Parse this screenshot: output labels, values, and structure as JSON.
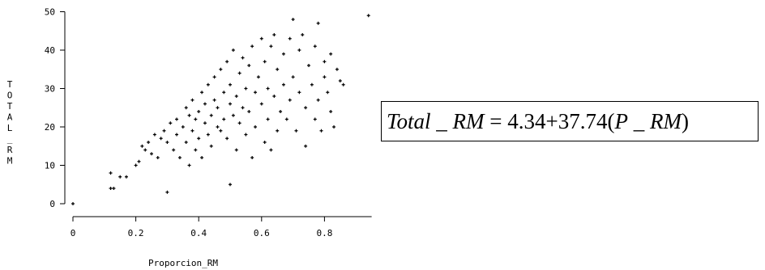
{
  "chart_data": {
    "type": "scatter",
    "xlabel": "Proporcion_RM",
    "ylabel": "TOTAL_RM",
    "xlim": [
      0,
      0.95
    ],
    "ylim": [
      0,
      50
    ],
    "xticks": [
      "0",
      "0.2",
      "0.4",
      "0.6",
      "0.8"
    ],
    "xtick_values": [
      0,
      0.2,
      0.4,
      0.6,
      0.8
    ],
    "yticks": [
      "0",
      "10",
      "20",
      "30",
      "40",
      "50"
    ],
    "ytick_values": [
      0,
      10,
      20,
      30,
      40,
      50
    ],
    "grid": false,
    "marker": "+",
    "color": "#000000",
    "points": [
      [
        0.0,
        0
      ],
      [
        0.12,
        8
      ],
      [
        0.12,
        4
      ],
      [
        0.13,
        4
      ],
      [
        0.15,
        7
      ],
      [
        0.17,
        7
      ],
      [
        0.2,
        10
      ],
      [
        0.21,
        11
      ],
      [
        0.22,
        15
      ],
      [
        0.23,
        14
      ],
      [
        0.24,
        16
      ],
      [
        0.25,
        13
      ],
      [
        0.26,
        18
      ],
      [
        0.27,
        12
      ],
      [
        0.28,
        17
      ],
      [
        0.29,
        19
      ],
      [
        0.3,
        3
      ],
      [
        0.3,
        16
      ],
      [
        0.31,
        21
      ],
      [
        0.32,
        14
      ],
      [
        0.33,
        18
      ],
      [
        0.33,
        22
      ],
      [
        0.34,
        12
      ],
      [
        0.35,
        20
      ],
      [
        0.36,
        25
      ],
      [
        0.36,
        16
      ],
      [
        0.37,
        23
      ],
      [
        0.37,
        10
      ],
      [
        0.38,
        19
      ],
      [
        0.38,
        27
      ],
      [
        0.39,
        14
      ],
      [
        0.39,
        22
      ],
      [
        0.4,
        24
      ],
      [
        0.4,
        17
      ],
      [
        0.41,
        29
      ],
      [
        0.41,
        12
      ],
      [
        0.42,
        21
      ],
      [
        0.42,
        26
      ],
      [
        0.43,
        31
      ],
      [
        0.43,
        18
      ],
      [
        0.44,
        23
      ],
      [
        0.44,
        15
      ],
      [
        0.45,
        33
      ],
      [
        0.45,
        27
      ],
      [
        0.46,
        20
      ],
      [
        0.46,
        25
      ],
      [
        0.47,
        35
      ],
      [
        0.47,
        19
      ],
      [
        0.48,
        29
      ],
      [
        0.48,
        22
      ],
      [
        0.49,
        37
      ],
      [
        0.49,
        17
      ],
      [
        0.5,
        5
      ],
      [
        0.5,
        26
      ],
      [
        0.5,
        31
      ],
      [
        0.51,
        40
      ],
      [
        0.51,
        23
      ],
      [
        0.52,
        28
      ],
      [
        0.52,
        14
      ],
      [
        0.53,
        34
      ],
      [
        0.53,
        21
      ],
      [
        0.54,
        38
      ],
      [
        0.54,
        25
      ],
      [
        0.55,
        30
      ],
      [
        0.55,
        18
      ],
      [
        0.56,
        36
      ],
      [
        0.56,
        24
      ],
      [
        0.57,
        12
      ],
      [
        0.57,
        41
      ],
      [
        0.58,
        29
      ],
      [
        0.58,
        20
      ],
      [
        0.59,
        33
      ],
      [
        0.6,
        43
      ],
      [
        0.6,
        26
      ],
      [
        0.61,
        16
      ],
      [
        0.61,
        37
      ],
      [
        0.62,
        22
      ],
      [
        0.62,
        30
      ],
      [
        0.63,
        41
      ],
      [
        0.63,
        14
      ],
      [
        0.64,
        44
      ],
      [
        0.64,
        28
      ],
      [
        0.65,
        19
      ],
      [
        0.65,
        35
      ],
      [
        0.66,
        24
      ],
      [
        0.67,
        39
      ],
      [
        0.67,
        31
      ],
      [
        0.68,
        22
      ],
      [
        0.69,
        43
      ],
      [
        0.69,
        27
      ],
      [
        0.7,
        48
      ],
      [
        0.7,
        33
      ],
      [
        0.71,
        19
      ],
      [
        0.72,
        40
      ],
      [
        0.72,
        29
      ],
      [
        0.73,
        44
      ],
      [
        0.74,
        25
      ],
      [
        0.74,
        15
      ],
      [
        0.75,
        36
      ],
      [
        0.76,
        31
      ],
      [
        0.77,
        41
      ],
      [
        0.77,
        22
      ],
      [
        0.78,
        47
      ],
      [
        0.78,
        27
      ],
      [
        0.79,
        19
      ],
      [
        0.8,
        37
      ],
      [
        0.8,
        33
      ],
      [
        0.81,
        29
      ],
      [
        0.82,
        39
      ],
      [
        0.82,
        24
      ],
      [
        0.83,
        20
      ],
      [
        0.84,
        35
      ],
      [
        0.85,
        32
      ],
      [
        0.86,
        31
      ],
      [
        0.94,
        49
      ]
    ]
  },
  "equation": {
    "lhs_name": "Total",
    "lhs_sep": " _ ",
    "lhs_suffix": "RM",
    "equals": " = ",
    "intercept": "4.34",
    "plus": "+",
    "slope": "37.74",
    "open_paren": "(",
    "var_name": "P",
    "var_sep": " _ ",
    "var_suffix": "RM",
    "close_paren": ")"
  }
}
